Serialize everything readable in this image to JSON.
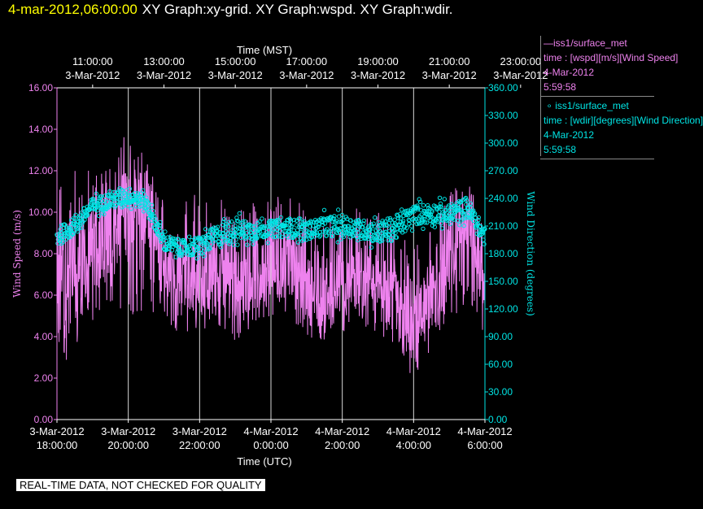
{
  "header": {
    "datetime": "4-mar-2012,06:00:00",
    "graphs": "XY Graph:xy-grid.  XY Graph:wspd.  XY Graph:wdir."
  },
  "legend": {
    "wspd": {
      "name": "iss1/surface_met",
      "line2": "time : [wspd][m/s][Wind Speed]",
      "date": "4-Mar-2012",
      "time": "5:59:58",
      "color": "#ee82ee"
    },
    "wdir": {
      "name": "iss1/surface_met",
      "line2": "time : [wdir][degrees][Wind Direction]",
      "date": "4-Mar-2012",
      "time": "5:59:58",
      "color": "#00e5e5"
    }
  },
  "footer": {
    "note": "REAL-TIME DATA, NOT CHECKED FOR QUALITY"
  },
  "chart_data": {
    "type": "line",
    "x_top_label": "Time (MST)",
    "x_bottom_label": "Time (UTC)",
    "x_top_ticks": [
      {
        "time": "11:00:00",
        "date": "3-Mar-2012"
      },
      {
        "time": "13:00:00",
        "date": "3-Mar-2012"
      },
      {
        "time": "15:00:00",
        "date": "3-Mar-2012"
      },
      {
        "time": "17:00:00",
        "date": "3-Mar-2012"
      },
      {
        "time": "19:00:00",
        "date": "3-Mar-2012"
      },
      {
        "time": "21:00:00",
        "date": "3-Mar-2012"
      },
      {
        "time": "23:00:00",
        "date": "3-Mar-2012"
      }
    ],
    "x_bottom_ticks": [
      {
        "date": "3-Mar-2012",
        "time": "18:00:00"
      },
      {
        "date": "3-Mar-2012",
        "time": "20:00:00"
      },
      {
        "date": "3-Mar-2012",
        "time": "22:00:00"
      },
      {
        "date": "4-Mar-2012",
        "time": "0:00:00"
      },
      {
        "date": "4-Mar-2012",
        "time": "2:00:00"
      },
      {
        "date": "4-Mar-2012",
        "time": "4:00:00"
      },
      {
        "date": "4-Mar-2012",
        "time": "6:00:00"
      }
    ],
    "x_range_utc": [
      "3-Mar-2012 18:00:00",
      "4-Mar-2012 06:00:00"
    ],
    "left_axis": {
      "label": "Wind Speed (m/s)",
      "range": [
        0,
        16
      ],
      "ticks": [
        "0.00",
        "2.00",
        "4.00",
        "6.00",
        "8.00",
        "10.00",
        "12.00",
        "14.00",
        "16.00"
      ],
      "color": "#ee82ee"
    },
    "right_axis": {
      "label": "Wind Direction (degrees)",
      "range": [
        0,
        360
      ],
      "ticks": [
        "0.00",
        "30.00",
        "60.00",
        "90.00",
        "120.00",
        "150.00",
        "180.00",
        "210.00",
        "240.00",
        "270.00",
        "300.00",
        "330.00",
        "360.00"
      ],
      "color": "#00e5e5"
    },
    "grid": "vertical",
    "series": [
      {
        "name": "iss1/surface_met",
        "variable": "wspd",
        "style": "line",
        "color": "#ee82ee",
        "x_hours_utc": [
          18.0,
          18.5,
          19.0,
          19.5,
          20.0,
          20.5,
          21.0,
          21.5,
          22.0,
          22.5,
          23.0,
          23.5,
          24.0,
          24.5,
          25.0,
          25.5,
          26.0,
          26.5,
          27.0,
          27.5,
          28.0,
          28.5,
          29.0,
          29.5,
          30.0
        ],
        "values": [
          7.0,
          7.3,
          8.0,
          9.0,
          10.5,
          10.0,
          7.6,
          7.2,
          6.8,
          7.0,
          6.6,
          6.9,
          7.3,
          7.8,
          6.2,
          6.0,
          6.5,
          6.8,
          6.5,
          5.6,
          4.2,
          5.6,
          7.3,
          9.3,
          6.5
        ],
        "min": [
          2.7,
          3.0,
          4.5,
          5.5,
          5.0,
          5.2,
          4.5,
          4.2,
          4.2,
          4.4,
          3.8,
          4.5,
          5.0,
          5.0,
          4.0,
          3.8,
          4.2,
          4.5,
          4.2,
          3.5,
          1.8,
          3.5,
          4.8,
          5.5,
          4.0
        ],
        "max": [
          11.8,
          12.0,
          12.4,
          13.0,
          14.0,
          12.5,
          11.0,
          10.5,
          11.2,
          11.0,
          10.2,
          10.5,
          11.0,
          11.2,
          10.0,
          9.8,
          9.6,
          10.5,
          10.0,
          9.5,
          8.2,
          9.8,
          11.0,
          11.8,
          9.5
        ]
      },
      {
        "name": "iss1/surface_met",
        "variable": "wdir",
        "style": "markers",
        "color": "#00e5e5",
        "x_hours_utc": [
          18.0,
          18.5,
          19.0,
          19.5,
          20.0,
          20.5,
          21.0,
          21.5,
          22.0,
          22.5,
          23.0,
          23.5,
          24.0,
          24.5,
          25.0,
          25.5,
          26.0,
          26.5,
          27.0,
          27.5,
          28.0,
          28.5,
          29.0,
          29.5,
          30.0
        ],
        "values": [
          198,
          210,
          232,
          238,
          243,
          236,
          192,
          186,
          188,
          200,
          206,
          205,
          207,
          208,
          205,
          210,
          210,
          207,
          203,
          208,
          222,
          224,
          222,
          230,
          198
        ],
        "min": [
          180,
          195,
          222,
          228,
          230,
          225,
          175,
          172,
          175,
          185,
          193,
          192,
          195,
          194,
          192,
          195,
          195,
          195,
          190,
          190,
          205,
          208,
          205,
          210,
          180
        ],
        "max": [
          215,
          225,
          250,
          255,
          260,
          250,
          205,
          200,
          210,
          222,
          232,
          225,
          225,
          228,
          225,
          230,
          235,
          228,
          230,
          235,
          240,
          245,
          240,
          250,
          212
        ]
      }
    ]
  }
}
